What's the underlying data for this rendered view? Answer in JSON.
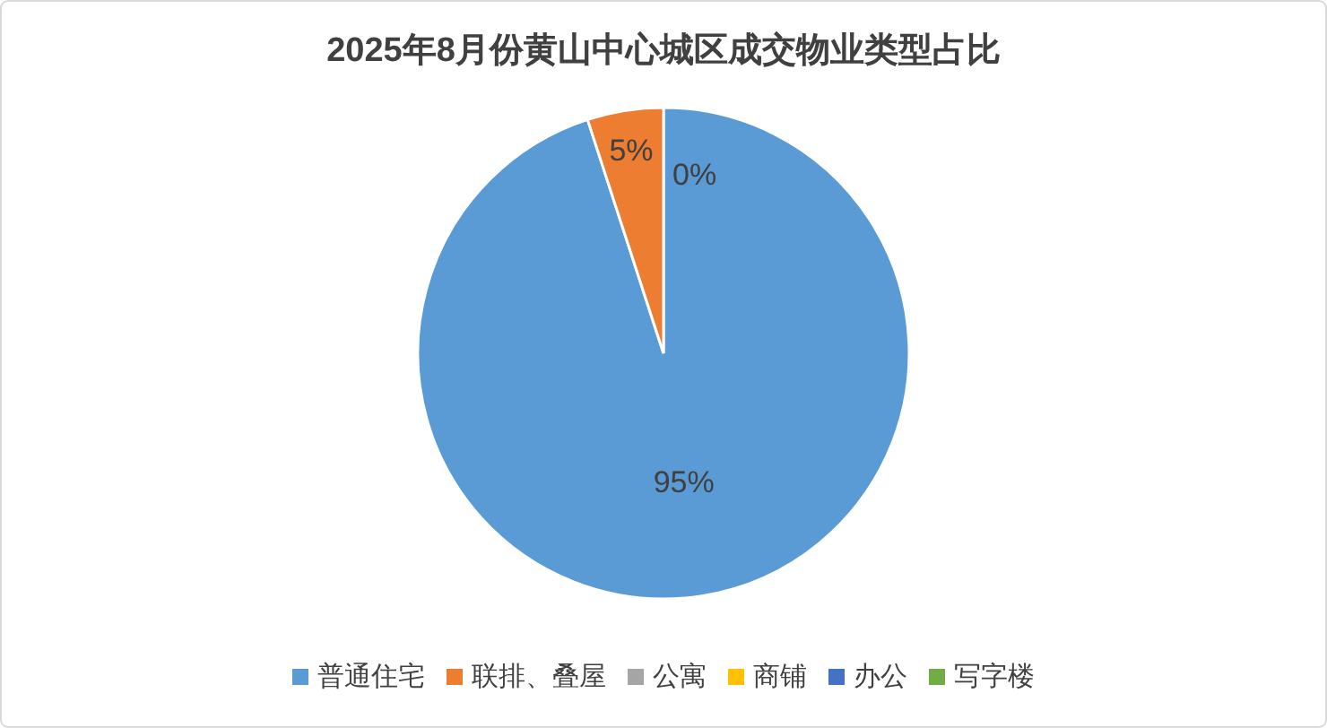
{
  "chart_data": {
    "type": "pie",
    "title": "2025年8月份黄山中心城区成交物业类型占比",
    "categories": [
      "普通住宅",
      "联排、叠屋",
      "公寓",
      "商铺",
      "办公",
      "写字楼"
    ],
    "values": [
      95,
      5,
      0,
      0,
      0,
      0
    ],
    "colors": [
      "#5b9bd5",
      "#ed7d31",
      "#a5a5a5",
      "#ffc000",
      "#4472c4",
      "#70ad47"
    ],
    "value_labels": [
      "95%",
      "5%",
      "0%",
      null,
      null,
      null
    ],
    "legend": "bottom"
  }
}
